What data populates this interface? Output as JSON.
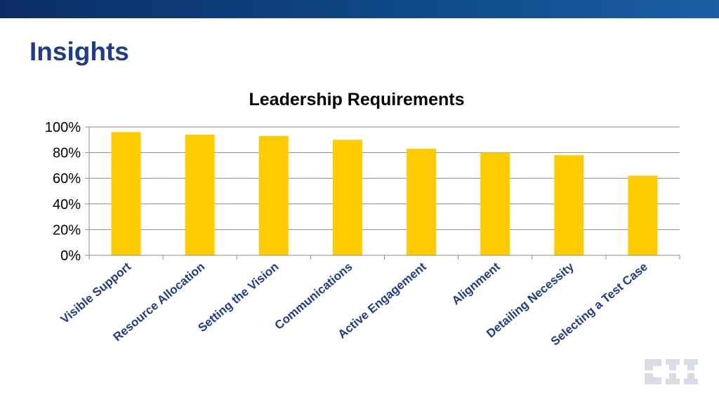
{
  "slide": {
    "title": "Insights",
    "logo_text": "CII"
  },
  "colors": {
    "header_bar": "#0b2d66",
    "title": "#1f3b8c",
    "bar": "#ffcc00",
    "category_label": "#1f3b8c",
    "logo": "#d9dbe6"
  },
  "chart_data": {
    "type": "bar",
    "title": "Leadership Requirements",
    "categories": [
      "Visible Support",
      "Resource Allocation",
      "Setting the Vision",
      "Communications",
      "Active Engagement",
      "Alignment",
      "Detailing Necessity",
      "Selecting a Test Case"
    ],
    "values": [
      96,
      94,
      93,
      90,
      83,
      80,
      78,
      62
    ],
    "ylim": [
      0,
      100
    ],
    "yticks": [
      0,
      20,
      40,
      60,
      80,
      100
    ],
    "ytick_labels": [
      "0%",
      "20%",
      "40%",
      "60%",
      "80%",
      "100%"
    ],
    "grid": true,
    "legend": "none"
  }
}
